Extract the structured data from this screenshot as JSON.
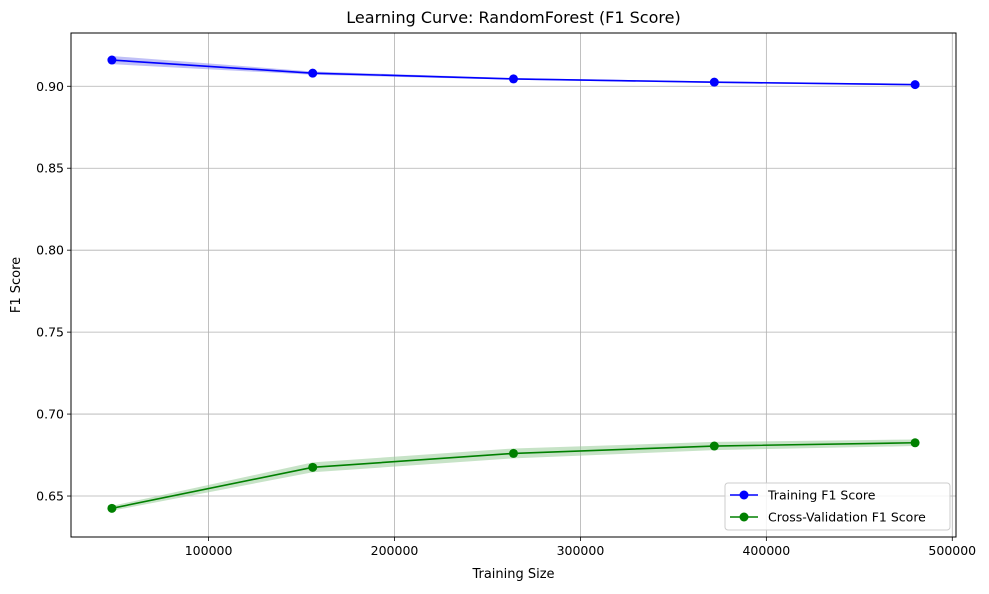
{
  "chart_data": {
    "type": "line",
    "title": "Learning Curve: RandomForest (F1 Score)",
    "xlabel": "Training Size",
    "ylabel": "F1 Score",
    "xlim": [
      26000,
      502000
    ],
    "ylim": [
      0.625,
      0.9325
    ],
    "xticks": [
      100000,
      200000,
      300000,
      400000,
      500000
    ],
    "xtick_labels": [
      "100000",
      "200000",
      "300000",
      "400000",
      "500000"
    ],
    "yticks": [
      0.65,
      0.7,
      0.75,
      0.8,
      0.85,
      0.9
    ],
    "ytick_labels": [
      "0.65",
      "0.70",
      "0.75",
      "0.80",
      "0.85",
      "0.90"
    ],
    "grid": true,
    "legend_position": "lower-right",
    "x": [
      48000,
      156000,
      264000,
      372000,
      480000
    ],
    "series": [
      {
        "name": "Training F1 Score",
        "color": "#0000ff",
        "band_color": "#8c8cf0",
        "marker": "circle",
        "values": [
          0.916,
          0.908,
          0.9045,
          0.9025,
          0.901
        ],
        "band_upper": [
          0.9185,
          0.909,
          0.905,
          0.903,
          0.9015
        ],
        "band_lower": [
          0.9135,
          0.907,
          0.904,
          0.902,
          0.9005
        ]
      },
      {
        "name": "Cross-Validation F1 Score",
        "color": "#008000",
        "band_color": "#99cc99",
        "marker": "circle",
        "values": [
          0.6425,
          0.6675,
          0.676,
          0.6805,
          0.6825
        ],
        "band_upper": [
          0.644,
          0.6705,
          0.679,
          0.683,
          0.6845
        ],
        "band_lower": [
          0.641,
          0.6645,
          0.673,
          0.678,
          0.6805
        ]
      }
    ]
  }
}
